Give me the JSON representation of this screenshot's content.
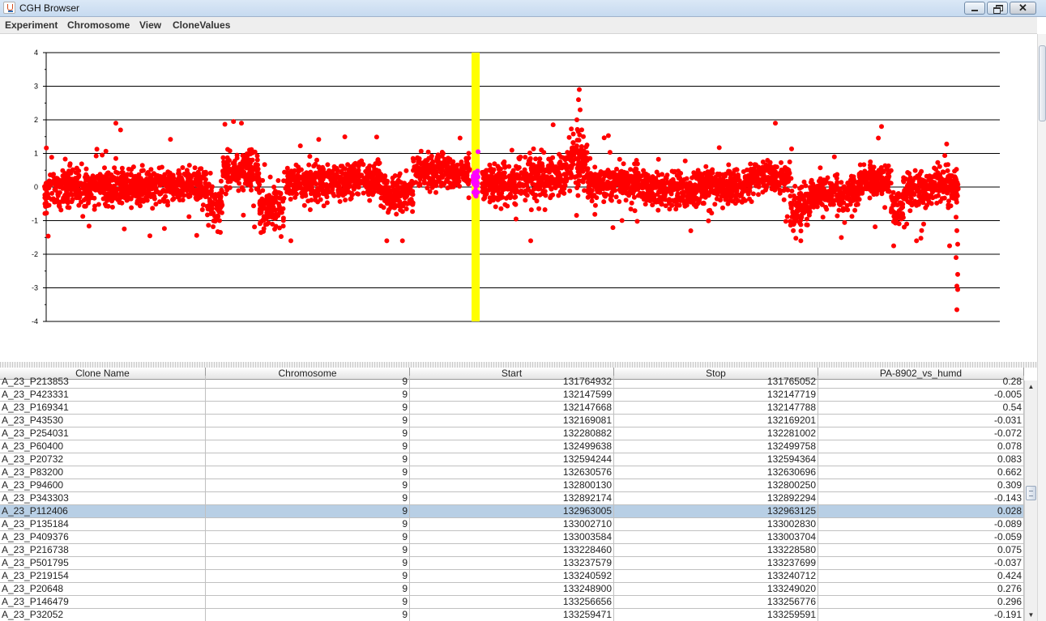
{
  "window": {
    "title": "CGH Browser"
  },
  "menu": {
    "items": [
      "Experiment",
      "Chromosome",
      "View",
      "CloneValues"
    ]
  },
  "colors": {
    "points": "#ff0000",
    "highlight_band": "#ffff00",
    "selected_points": "#ff00ff",
    "selected_row": "#b8cfe5"
  },
  "chart_data": {
    "type": "scatter",
    "y_ticks": [
      "4",
      "3",
      "2",
      "1",
      "0",
      "-1",
      "-2",
      "-3",
      "-4"
    ],
    "ylim": [
      -4,
      4
    ],
    "grid": true,
    "highlight": "vertical yellow band with magenta points marking the selected clone region"
  },
  "table": {
    "columns": [
      "Clone Name",
      "Chromosome",
      "Start",
      "Stop",
      "PA-8902_vs_humd"
    ],
    "rows": [
      [
        "A_23_P213853",
        "9",
        "131764932",
        "131765052",
        "0.28"
      ],
      [
        "A_23_P423331",
        "9",
        "132147599",
        "132147719",
        "-0.005"
      ],
      [
        "A_23_P169341",
        "9",
        "132147668",
        "132147788",
        "0.54"
      ],
      [
        "A_23_P43530",
        "9",
        "132169081",
        "132169201",
        "-0.031"
      ],
      [
        "A_23_P254031",
        "9",
        "132280882",
        "132281002",
        "-0.072"
      ],
      [
        "A_23_P60400",
        "9",
        "132499638",
        "132499758",
        "0.078"
      ],
      [
        "A_23_P20732",
        "9",
        "132594244",
        "132594364",
        "0.083"
      ],
      [
        "A_23_P83200",
        "9",
        "132630576",
        "132630696",
        "0.662"
      ],
      [
        "A_23_P94600",
        "9",
        "132800130",
        "132800250",
        "0.309"
      ],
      [
        "A_23_P343303",
        "9",
        "132892174",
        "132892294",
        "-0.143"
      ],
      [
        "A_23_P112406",
        "9",
        "132963005",
        "132963125",
        "0.028"
      ],
      [
        "A_23_P135184",
        "9",
        "133002710",
        "133002830",
        "-0.089"
      ],
      [
        "A_23_P409376",
        "9",
        "133003584",
        "133003704",
        "-0.059"
      ],
      [
        "A_23_P216738",
        "9",
        "133228460",
        "133228580",
        "0.075"
      ],
      [
        "A_23_P501795",
        "9",
        "133237579",
        "133237699",
        "-0.037"
      ],
      [
        "A_23_P219154",
        "9",
        "133240592",
        "133240712",
        "0.424"
      ],
      [
        "A_23_P20648",
        "9",
        "133248900",
        "133249020",
        "0.276"
      ],
      [
        "A_23_P146479",
        "9",
        "133256656",
        "133256776",
        "0.296"
      ],
      [
        "A_23_P32052",
        "9",
        "133259471",
        "133259591",
        "-0.191"
      ]
    ],
    "selected_row": 10
  }
}
